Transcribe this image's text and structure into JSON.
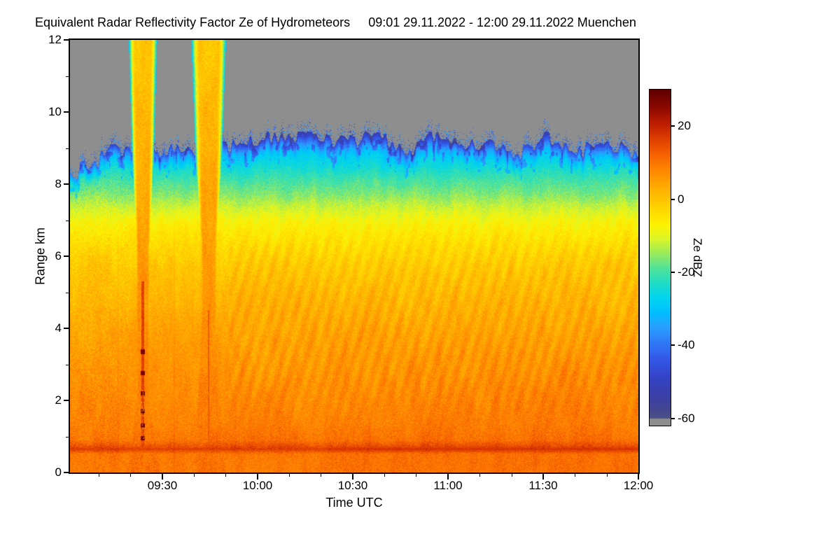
{
  "title": {
    "left": "Equivalent Radar Reflectivity Factor Ze of Hydrometeors",
    "right": "09:01 29.11.2022 - 12:00 29.11.2022 Muenchen"
  },
  "axes": {
    "xlabel": "Time UTC",
    "ylabel": "Range km",
    "x_start_hour": 9.0167,
    "x_end_hour": 12.0,
    "x_ticks": [
      {
        "hour": 9.5,
        "label": "09:30"
      },
      {
        "hour": 10.0,
        "label": "10:00"
      },
      {
        "hour": 10.5,
        "label": "10:30"
      },
      {
        "hour": 11.0,
        "label": "11:00"
      },
      {
        "hour": 11.5,
        "label": "11:30"
      },
      {
        "hour": 12.0,
        "label": "12:00"
      }
    ],
    "x_minor_step_hour": 0.166667,
    "y_min_km": 0,
    "y_max_km": 12,
    "y_ticks": [
      {
        "km": 0,
        "label": "0"
      },
      {
        "km": 2,
        "label": "2"
      },
      {
        "km": 4,
        "label": "4"
      },
      {
        "km": 6,
        "label": "6"
      },
      {
        "km": 8,
        "label": "8"
      },
      {
        "km": 10,
        "label": "10"
      },
      {
        "km": 12,
        "label": "12"
      }
    ],
    "y_minor_step_km": 1
  },
  "colorbar": {
    "label": "Ze dBZ",
    "ticks": [
      {
        "value": 20,
        "label": "20"
      },
      {
        "value": 0,
        "label": "0"
      },
      {
        "value": -20,
        "label": "-20"
      },
      {
        "value": -40,
        "label": "-40"
      },
      {
        "value": -60,
        "label": "-60"
      }
    ]
  },
  "chart_data": {
    "type": "heatmap",
    "title": "Equivalent Radar Reflectivity Factor Ze of Hydrometeors",
    "subtitle": "09:01 29.11.2022 - 12:00 29.11.2022 Muenchen",
    "xlabel": "Time UTC",
    "ylabel": "Range km",
    "colorbar_label": "Ze dBZ",
    "x_range": [
      9.0167,
      12.0
    ],
    "y_range": [
      0,
      12
    ],
    "value_range": [
      -62,
      30
    ],
    "nodata_color": "#8e8e8e",
    "colormap": [
      [
        30,
        "#5e0000"
      ],
      [
        25,
        "#8e0900"
      ],
      [
        21,
        "#ba1c00"
      ],
      [
        17,
        "#dc3a00"
      ],
      [
        13,
        "#f25c00"
      ],
      [
        9,
        "#ff7e00"
      ],
      [
        5,
        "#ff9f00"
      ],
      [
        1,
        "#ffbd00"
      ],
      [
        -3,
        "#ffd800"
      ],
      [
        -7,
        "#fff200"
      ],
      [
        -11,
        "#d9f52a"
      ],
      [
        -15,
        "#97ea5f"
      ],
      [
        -19,
        "#50e29b"
      ],
      [
        -23,
        "#1fdcc6"
      ],
      [
        -27,
        "#00d4ef"
      ],
      [
        -31,
        "#00beff"
      ],
      [
        -35,
        "#29a0ff"
      ],
      [
        -39,
        "#2f7bf8"
      ],
      [
        -44,
        "#3357e6"
      ],
      [
        -49,
        "#3442c6"
      ],
      [
        -54,
        "#3a3fa6"
      ],
      [
        -58,
        "#46488e"
      ],
      [
        -62,
        "#545a80"
      ]
    ],
    "mean_profile_km_dbz": [
      [
        0,
        9
      ],
      [
        0.5,
        9.5
      ],
      [
        0.65,
        16
      ],
      [
        0.9,
        10
      ],
      [
        1.3,
        8.5
      ],
      [
        2,
        7.5
      ],
      [
        3,
        6
      ],
      [
        4,
        4
      ],
      [
        5,
        1.5
      ],
      [
        5.7,
        -0.5
      ],
      [
        6.3,
        -3.5
      ],
      [
        6.9,
        -7
      ],
      [
        7.3,
        -11
      ],
      [
        7.7,
        -16
      ],
      [
        8.1,
        -20
      ],
      [
        8.5,
        -25
      ],
      [
        8.9,
        -29
      ],
      [
        9.2,
        -34
      ],
      [
        9.6,
        -40
      ],
      [
        10.2,
        -44
      ],
      [
        12,
        -46
      ]
    ],
    "bright_band_km": 0.65,
    "echo_top_base_km": 9.05,
    "towers": [
      {
        "center_hour": 9.4,
        "half_width_hour": 0.045,
        "upper_widen_per_km": 0.12,
        "upper_widen_start_km": 6.5,
        "base_flare_coeff": 0.036,
        "base_flare_start_km": 2.3,
        "core_dbz": 16,
        "core_top_km": 5.3,
        "core_half_width_hour": 0.007,
        "dashes_km": [
          3.35,
          2.75,
          2.2,
          1.7,
          1.3,
          0.95
        ],
        "blue_dots": true
      },
      {
        "center_hour": 9.745,
        "half_width_hour": 0.055,
        "upper_widen_per_km": 0.12,
        "upper_widen_start_km": 6.5,
        "base_flare_coeff": 0.012,
        "base_flare_start_km": 4.5,
        "core_dbz": 13,
        "core_top_km": 4.5,
        "core_half_width_hour": 0.004,
        "dashes_km": [],
        "blue_dots": false
      }
    ],
    "speckle_columns_hour": [
      9.268,
      9.565
    ]
  }
}
